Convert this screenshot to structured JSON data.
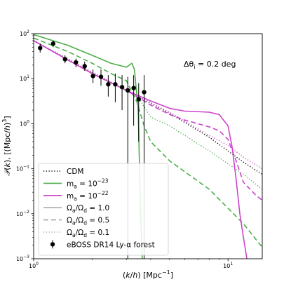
{
  "chart_data": {
    "type": "line",
    "title": "",
    "annotation": "Δθ_i = 0.2 deg",
    "xlabel": "(k/h) [Mpc^-1]",
    "ylabel": "P(k), [(Mpc/h)^3]",
    "xscale": "log",
    "yscale": "log",
    "xlim": [
      1.0,
      15.0
    ],
    "ylim": [
      0.001,
      100
    ],
    "xticks": [
      {
        "value": 1,
        "base": "10",
        "exp": "0"
      },
      {
        "value": 10,
        "base": "10",
        "exp": "1"
      }
    ],
    "yticks": [
      {
        "value": 0.001,
        "base": "10",
        "exp": "−3"
      },
      {
        "value": 0.01,
        "base": "10",
        "exp": "−2"
      },
      {
        "value": 0.1,
        "base": "10",
        "exp": "−1"
      },
      {
        "value": 1,
        "base": "10",
        "exp": "0"
      },
      {
        "value": 10,
        "base": "10",
        "exp": "1"
      },
      {
        "value": 100,
        "base": "10",
        "exp": "2"
      }
    ],
    "grid": false,
    "legend_position": "lower-left",
    "colors": {
      "cdm": "#000000",
      "ma23": "#4daf4a",
      "ma22": "#cc44cc",
      "ratio_legend": "#a8a8a8",
      "data": "#000000"
    },
    "series": [
      {
        "key": "cdm",
        "color": "#000000",
        "dash": "dotted",
        "points": [
          [
            1.0,
            70
          ],
          [
            1.5,
            27
          ],
          [
            2.0,
            14
          ],
          [
            3.0,
            5.5
          ],
          [
            5.0,
            1.7
          ],
          [
            8.0,
            0.5
          ],
          [
            12.0,
            0.14
          ],
          [
            15.0,
            0.075
          ]
        ]
      },
      {
        "key": "ma23_r10",
        "color": "#4daf4a",
        "dash": "solid",
        "points": [
          [
            1.0,
            95
          ],
          [
            1.5,
            55
          ],
          [
            2.0,
            33
          ],
          [
            2.5,
            22
          ],
          [
            3.0,
            18
          ],
          [
            3.2,
            22
          ],
          [
            3.3,
            16
          ],
          [
            3.45,
            2
          ],
          [
            3.55,
            0.01
          ],
          [
            3.62,
            0.001
          ]
        ]
      },
      {
        "key": "ma23_r05",
        "color": "#4daf4a",
        "dash": "dashed",
        "points": [
          [
            1.0,
            80
          ],
          [
            1.5,
            40
          ],
          [
            2.0,
            22
          ],
          [
            2.5,
            13
          ],
          [
            3.0,
            9
          ],
          [
            3.4,
            3
          ],
          [
            3.7,
            0.9
          ],
          [
            4.0,
            0.4
          ],
          [
            5.0,
            0.15
          ],
          [
            8.0,
            0.035
          ],
          [
            12.0,
            0.006
          ],
          [
            15.0,
            0.0018
          ]
        ]
      },
      {
        "key": "ma23_r01",
        "color": "#4daf4a",
        "dash": "dotted",
        "points": [
          [
            1.0,
            70
          ],
          [
            1.5,
            28
          ],
          [
            2.0,
            14
          ],
          [
            3.0,
            5.5
          ],
          [
            3.5,
            3.5
          ],
          [
            4.0,
            1.4
          ],
          [
            5.0,
            0.9
          ],
          [
            8.0,
            0.25
          ],
          [
            12.0,
            0.075
          ],
          [
            15.0,
            0.035
          ]
        ]
      },
      {
        "key": "ma22_r10",
        "color": "#cc44cc",
        "dash": "solid",
        "points": [
          [
            1.0,
            70
          ],
          [
            1.5,
            26
          ],
          [
            2.0,
            13
          ],
          [
            3.0,
            5.5
          ],
          [
            4.0,
            3.2
          ],
          [
            5.0,
            2.2
          ],
          [
            6.0,
            1.9
          ],
          [
            7.0,
            1.85
          ],
          [
            8.0,
            1.8
          ],
          [
            9.0,
            1.6
          ],
          [
            10.0,
            0.9
          ],
          [
            10.5,
            0.3
          ],
          [
            11.0,
            0.06
          ],
          [
            11.5,
            0.01
          ],
          [
            12.0,
            0.003
          ],
          [
            12.5,
            0.001
          ]
        ]
      },
      {
        "key": "ma22_r05",
        "color": "#cc44cc",
        "dash": "dashed",
        "points": [
          [
            1.0,
            70
          ],
          [
            1.5,
            26
          ],
          [
            2.0,
            13
          ],
          [
            3.0,
            5.5
          ],
          [
            4.0,
            2.6
          ],
          [
            5.0,
            1.6
          ],
          [
            6.0,
            1.2
          ],
          [
            7.0,
            1.0
          ],
          [
            8.0,
            0.85
          ],
          [
            9.0,
            0.7
          ],
          [
            10.0,
            0.45
          ],
          [
            11.0,
            0.15
          ],
          [
            12.0,
            0.05
          ],
          [
            14.0,
            0.025
          ],
          [
            15.0,
            0.02
          ]
        ]
      },
      {
        "key": "ma22_r01",
        "color": "#cc44cc",
        "dash": "dotted",
        "points": [
          [
            1.0,
            70
          ],
          [
            1.5,
            27
          ],
          [
            2.0,
            14
          ],
          [
            3.0,
            5.5
          ],
          [
            5.0,
            1.8
          ],
          [
            8.0,
            0.55
          ],
          [
            10.0,
            0.33
          ],
          [
            12.0,
            0.18
          ],
          [
            15.0,
            0.1
          ]
        ]
      }
    ],
    "data_points": [
      {
        "x": 1.08,
        "y": 48,
        "lo": 38,
        "hi": 60
      },
      {
        "x": 1.26,
        "y": 60,
        "lo": 50,
        "hi": 70
      },
      {
        "x": 1.45,
        "y": 27,
        "lo": 22,
        "hi": 33
      },
      {
        "x": 1.65,
        "y": 23,
        "lo": 18,
        "hi": 28
      },
      {
        "x": 1.83,
        "y": 19,
        "lo": 15,
        "hi": 24
      },
      {
        "x": 2.02,
        "y": 11.5,
        "lo": 8,
        "hi": 16
      },
      {
        "x": 2.22,
        "y": 11,
        "lo": 7,
        "hi": 16
      },
      {
        "x": 2.42,
        "y": 7.5,
        "lo": 4,
        "hi": 12
      },
      {
        "x": 2.63,
        "y": 7.5,
        "lo": 3,
        "hi": 13
      },
      {
        "x": 2.85,
        "y": 6.5,
        "lo": 2,
        "hi": 12
      },
      {
        "x": 3.05,
        "y": 5.5,
        "lo": 0.001,
        "hi": 11
      },
      {
        "x": 3.27,
        "y": 6.2,
        "lo": 0.9,
        "hi": 12
      },
      {
        "x": 3.47,
        "y": 3.5,
        "lo": 0.4,
        "hi": 8
      },
      {
        "x": 3.7,
        "y": 5.0,
        "lo": 0.001,
        "hi": 12
      }
    ],
    "legend": [
      {
        "label": "CDM",
        "color": "#000000",
        "dash": "dotted",
        "marker": false
      },
      {
        "label": "m_a = 10^−23",
        "color": "#4daf4a",
        "dash": "solid",
        "marker": false
      },
      {
        "label": "m_a = 10^−22",
        "color": "#cc44cc",
        "dash": "solid",
        "marker": false
      },
      {
        "label": "Ω_a/Ω_d = 1.0",
        "color": "#a8a8a8",
        "dash": "solid",
        "marker": false
      },
      {
        "label": "Ω_a/Ω_d = 0.5",
        "color": "#a8a8a8",
        "dash": "dashed",
        "marker": false
      },
      {
        "label": "Ω_a/Ω_d = 0.1",
        "color": "#a8a8a8",
        "dash": "dotted",
        "marker": false
      },
      {
        "label": "eBOSS DR14 Ly-α forest",
        "color": "#000000",
        "dash": "none",
        "marker": true
      }
    ]
  }
}
